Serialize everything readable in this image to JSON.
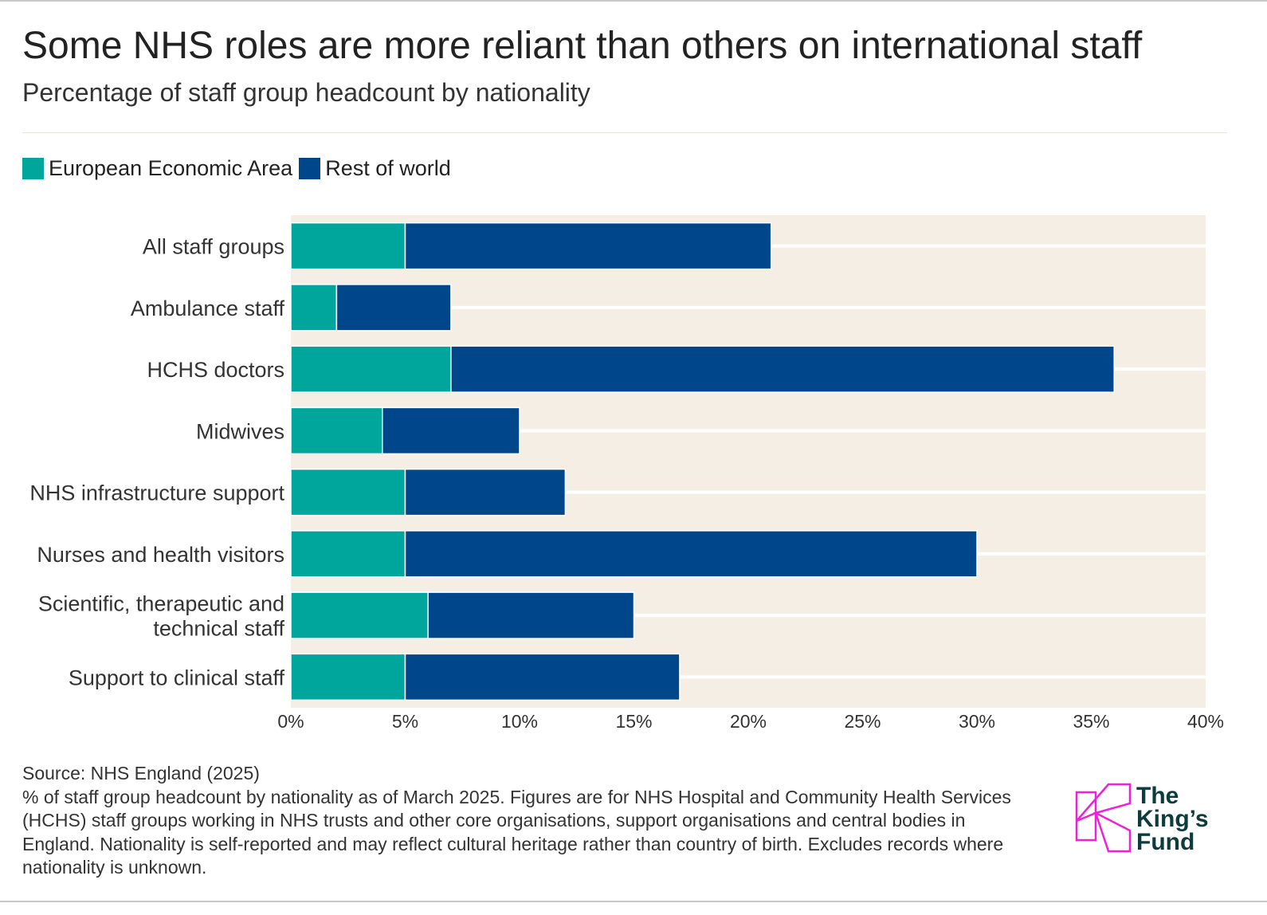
{
  "title": "Some NHS roles are more reliant than others on international staff",
  "subtitle": "Percentage of staff group headcount by nationality",
  "colors": {
    "eea": "#00A69C",
    "row": "#00468B",
    "plot_bg": "#F4EEE4",
    "logo": "#F01FD8",
    "logo_text": "#0E3B3B"
  },
  "chart_data": {
    "type": "bar",
    "orientation": "horizontal",
    "stacked": true,
    "categories": [
      "All staff groups",
      "Ambulance staff",
      "HCHS doctors",
      "Midwives",
      "NHS infrastructure support",
      "Nurses and health visitors",
      "Scientific, therapeutic and technical staff",
      "Support to clinical staff"
    ],
    "category_lines": [
      [
        "All staff groups"
      ],
      [
        "Ambulance staff"
      ],
      [
        "HCHS doctors"
      ],
      [
        "Midwives"
      ],
      [
        "NHS infrastructure support"
      ],
      [
        "Nurses and health visitors"
      ],
      [
        "Scientific, therapeutic and",
        "technical staff"
      ],
      [
        "Support to clinical staff"
      ]
    ],
    "series": [
      {
        "name": "European Economic Area",
        "values": [
          5,
          2,
          7,
          4,
          5,
          5,
          6,
          5
        ]
      },
      {
        "name": "Rest of world",
        "values": [
          16,
          5,
          29,
          6,
          7,
          25,
          9,
          12
        ]
      }
    ],
    "xlim": [
      0,
      40
    ],
    "xticks": [
      "0%",
      "5%",
      "10%",
      "15%",
      "20%",
      "25%",
      "30%",
      "35%",
      "40%"
    ],
    "legend_position": "top-left",
    "grid": false
  },
  "source": "Source: NHS England (2025)",
  "note": "% of staff group headcount by nationality as of March 2025. Figures are for NHS Hospital and Community Health Services (HCHS) staff groups working in NHS trusts and other core organisations, support organisations and central bodies in England. Nationality is self-reported and may reflect cultural heritage rather than country of birth. Excludes records where nationality is unknown.",
  "logo": {
    "text": "The King's Fund"
  }
}
